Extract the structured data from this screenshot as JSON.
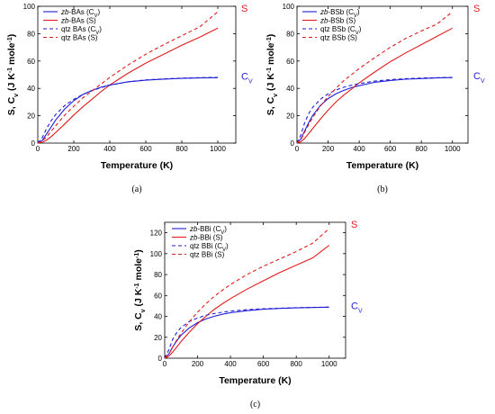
{
  "colors": {
    "cv": "#1f1fd6",
    "s": "#e01b1b",
    "axis": "#000000"
  },
  "chart_data": [
    {
      "type": "line",
      "panel": "(a)",
      "xlabel": "Temperature (K)",
      "ylabel": "S, C_v (J K⁻¹ mole⁻¹)",
      "xlim": [
        0,
        1100
      ],
      "ylim": [
        0,
        100
      ],
      "xticks": [
        0,
        200,
        400,
        600,
        800,
        1000
      ],
      "yticks": [
        0,
        20,
        40,
        60,
        80,
        100
      ],
      "legend_position": "top-left",
      "series": [
        {
          "name_prefix": "zb",
          "name_suffix": "-BAs (C",
          "name_sub": "V",
          "name_end": ")",
          "color": "cv",
          "dash": false,
          "x": [
            0,
            25,
            50,
            75,
            100,
            150,
            200,
            250,
            300,
            350,
            400,
            500,
            600,
            700,
            800,
            900,
            1000
          ],
          "values": [
            0,
            2,
            7,
            12,
            17,
            25,
            31,
            35.5,
            38.5,
            40.8,
            42.5,
            44.8,
            46,
            46.8,
            47.3,
            47.6,
            47.8
          ]
        },
        {
          "name_prefix": "zb",
          "name_suffix": "-BAs (S)",
          "name_sub": "",
          "name_end": "",
          "color": "s",
          "dash": false,
          "x": [
            0,
            25,
            50,
            75,
            100,
            150,
            200,
            250,
            300,
            350,
            400,
            500,
            600,
            700,
            800,
            900,
            1000
          ],
          "values": [
            0,
            0.6,
            2.3,
            4.8,
            7.8,
            14,
            20.5,
            26.5,
            32,
            37.5,
            42.5,
            51,
            58.5,
            65,
            71.5,
            77.5,
            84
          ]
        },
        {
          "name_prefix": "",
          "name_suffix": "qtz BAs (C",
          "name_sub": "V",
          "name_end": ")",
          "color": "cv",
          "dash": true,
          "x": [
            0,
            25,
            50,
            75,
            100,
            150,
            200,
            250,
            300,
            350,
            400,
            500,
            600,
            700,
            800,
            900,
            1000
          ],
          "values": [
            0,
            4,
            11,
            16.5,
            21,
            27.5,
            32,
            35.5,
            38.2,
            40.5,
            42.3,
            44.8,
            46.2,
            47,
            47.5,
            47.8,
            48
          ]
        },
        {
          "name_prefix": "",
          "name_suffix": "qtz BAs (S)",
          "name_sub": "",
          "name_end": "",
          "color": "s",
          "dash": true,
          "x": [
            0,
            25,
            50,
            75,
            100,
            150,
            200,
            250,
            300,
            350,
            400,
            500,
            600,
            700,
            800,
            900,
            1000
          ],
          "values": [
            0,
            1.5,
            4.8,
            8.8,
            12.8,
            20.5,
            27,
            33,
            38,
            43,
            48,
            57,
            65,
            72,
            78.5,
            85,
            96
          ]
        }
      ],
      "curve_labels": {
        "s": "S",
        "cv": "C",
        "cv_sub": "V"
      },
      "caption": "(a)"
    },
    {
      "type": "line",
      "panel": "(b)",
      "xlabel": "Temperature (K)",
      "ylabel": "S, C_v (J K⁻¹ mole⁻¹)",
      "xlim": [
        0,
        1100
      ],
      "ylim": [
        0,
        100
      ],
      "xticks": [
        0,
        200,
        400,
        600,
        800,
        1000
      ],
      "yticks": [
        0,
        20,
        40,
        60,
        80,
        100
      ],
      "legend_position": "top-left",
      "series": [
        {
          "name_prefix": "zb",
          "name_suffix": "-BSb (C",
          "name_sub": "V",
          "name_end": ")",
          "color": "cv",
          "dash": false,
          "x": [
            0,
            25,
            50,
            75,
            100,
            150,
            200,
            250,
            300,
            350,
            400,
            500,
            600,
            700,
            800,
            900,
            1000
          ],
          "values": [
            0,
            3,
            9,
            15,
            20,
            27.5,
            32.5,
            36,
            38.5,
            40.5,
            42,
            44.5,
            45.8,
            46.7,
            47.2,
            47.6,
            47.9
          ]
        },
        {
          "name_prefix": "zb",
          "name_suffix": "-BSb (S)",
          "name_sub": "",
          "name_end": "",
          "color": "s",
          "dash": false,
          "x": [
            0,
            25,
            50,
            75,
            100,
            150,
            200,
            250,
            300,
            350,
            400,
            500,
            600,
            700,
            800,
            900,
            1000
          ],
          "values": [
            0,
            1,
            3.5,
            7,
            10.5,
            17.5,
            24,
            30,
            35,
            39.5,
            44,
            52,
            59.5,
            66,
            72,
            78,
            84
          ]
        },
        {
          "name_prefix": "",
          "name_suffix": "qtz BSb (C",
          "name_sub": "V",
          "name_end": ")",
          "color": "cv",
          "dash": true,
          "x": [
            0,
            25,
            50,
            75,
            100,
            150,
            200,
            250,
            300,
            350,
            400,
            500,
            600,
            700,
            800,
            900,
            1000
          ],
          "values": [
            0,
            6,
            15,
            21.5,
            26,
            32,
            36,
            38.8,
            40.8,
            42.3,
            43.5,
            45.3,
            46.4,
            47.1,
            47.5,
            47.8,
            48
          ]
        },
        {
          "name_prefix": "",
          "name_suffix": "qtz BSb (S)",
          "name_sub": "",
          "name_end": "",
          "color": "s",
          "dash": true,
          "x": [
            0,
            25,
            50,
            75,
            100,
            150,
            200,
            250,
            300,
            350,
            400,
            500,
            600,
            700,
            800,
            900,
            1000
          ],
          "values": [
            0,
            2.5,
            8,
            13.5,
            18.5,
            27,
            34,
            40,
            45.5,
            50,
            54.5,
            62.5,
            70,
            76.5,
            82,
            87,
            96
          ]
        }
      ],
      "curve_labels": {
        "s": "S",
        "cv": "C",
        "cv_sub": "V"
      },
      "caption": "(b)"
    },
    {
      "type": "line",
      "panel": "(c)",
      "xlabel": "Temperature (K)",
      "ylabel": "S, C_v (J K⁻¹ mole⁻¹)",
      "xlim": [
        0,
        1100
      ],
      "ylim": [
        0,
        130
      ],
      "xticks": [
        0,
        200,
        400,
        600,
        800,
        1000
      ],
      "yticks": [
        0,
        20,
        40,
        60,
        80,
        100,
        120
      ],
      "legend_position": "top-left",
      "series": [
        {
          "name_prefix": "zb",
          "name_suffix": "-BBi (C",
          "name_sub": "V",
          "name_end": ")",
          "color": "cv",
          "dash": false,
          "x": [
            0,
            25,
            50,
            75,
            100,
            150,
            200,
            250,
            300,
            350,
            400,
            500,
            600,
            700,
            800,
            900,
            1000
          ],
          "values": [
            0,
            4,
            11,
            17,
            22,
            29,
            34,
            37.5,
            40,
            42,
            43.5,
            45.5,
            46.8,
            47.6,
            48.1,
            48.5,
            48.8
          ]
        },
        {
          "name_prefix": "zb",
          "name_suffix": "-BBi (S)",
          "name_sub": "",
          "name_end": "",
          "color": "s",
          "dash": false,
          "x": [
            0,
            25,
            50,
            75,
            100,
            150,
            200,
            250,
            300,
            350,
            400,
            500,
            600,
            700,
            800,
            900,
            1000
          ],
          "values": [
            0,
            2,
            6,
            11,
            16,
            25,
            33,
            40,
            46.5,
            52,
            57,
            66,
            74,
            82,
            89,
            96,
            108
          ]
        },
        {
          "name_prefix": "",
          "name_suffix": "qtz BBi (C",
          "name_sub": "V",
          "name_end": ")",
          "color": "cv",
          "dash": true,
          "x": [
            0,
            25,
            50,
            75,
            100,
            150,
            200,
            250,
            300,
            350,
            400,
            500,
            600,
            700,
            800,
            900,
            1000
          ],
          "values": [
            0,
            8,
            18.5,
            25,
            29.5,
            35,
            38.5,
            41,
            42.7,
            44,
            45,
            46.4,
            47.3,
            47.9,
            48.3,
            48.6,
            48.8
          ]
        },
        {
          "name_prefix": "",
          "name_suffix": "qtz BBi (S)",
          "name_sub": "",
          "name_end": "",
          "color": "s",
          "dash": true,
          "x": [
            0,
            25,
            50,
            75,
            100,
            150,
            200,
            250,
            300,
            350,
            400,
            500,
            600,
            700,
            800,
            900,
            1000
          ],
          "values": [
            0,
            4,
            11,
            18,
            24,
            35,
            44,
            52,
            59,
            65,
            70.5,
            80,
            88,
            95,
            102,
            110,
            124
          ]
        }
      ],
      "curve_labels": {
        "s": "S",
        "cv": "C",
        "cv_sub": "V"
      },
      "caption": "(c)"
    }
  ]
}
